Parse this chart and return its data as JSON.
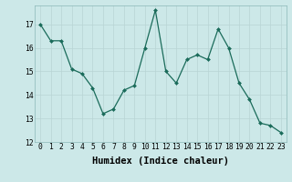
{
  "x": [
    0,
    1,
    2,
    3,
    4,
    5,
    6,
    7,
    8,
    9,
    10,
    11,
    12,
    13,
    14,
    15,
    16,
    17,
    18,
    19,
    20,
    21,
    22,
    23
  ],
  "y": [
    17.0,
    16.3,
    16.3,
    15.1,
    14.9,
    14.3,
    13.2,
    13.4,
    14.2,
    14.4,
    16.0,
    17.6,
    15.0,
    14.5,
    15.5,
    15.7,
    15.5,
    16.8,
    16.0,
    14.5,
    13.8,
    12.8,
    12.7,
    12.4
  ],
  "xlabel": "Humidex (Indice chaleur)",
  "ylim": [
    12,
    17.8
  ],
  "yticks": [
    12,
    13,
    14,
    15,
    16,
    17
  ],
  "xticks": [
    0,
    1,
    2,
    3,
    4,
    5,
    6,
    7,
    8,
    9,
    10,
    11,
    12,
    13,
    14,
    15,
    16,
    17,
    18,
    19,
    20,
    21,
    22,
    23
  ],
  "line_color": "#1a6b5a",
  "marker": "D",
  "marker_size": 2.0,
  "line_width": 0.9,
  "bg_color": "#cce8e8",
  "grid_color": "#b8d4d4",
  "label_fontsize": 7.5,
  "tick_fontsize": 5.8
}
